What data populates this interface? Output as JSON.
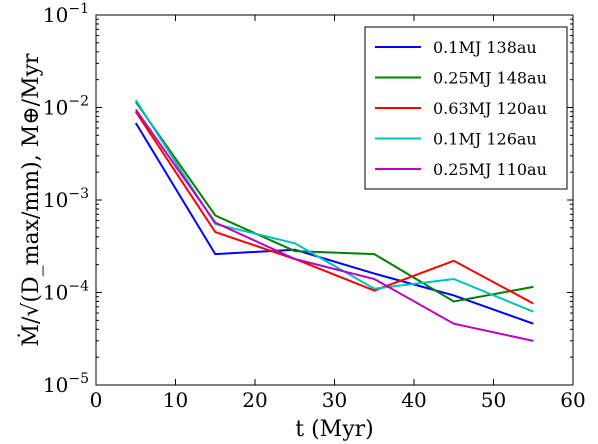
{
  "chart_data": {
    "type": "line",
    "xlabel": "t (Myr)",
    "ylabel": "Ṁ/√(D_max/mm), M⊕/Myr",
    "xlim": [
      0,
      60
    ],
    "ylim": [
      1e-05,
      0.1
    ],
    "yscale": "log",
    "grid": false,
    "legend_position": "top-right",
    "x_ticks": [
      0,
      10,
      20,
      30,
      40,
      50,
      60
    ],
    "x_tick_labels": [
      "0",
      "10",
      "20",
      "30",
      "40",
      "50",
      "60"
    ],
    "y_ticks": [
      1e-05,
      0.0001,
      0.001,
      0.01,
      0.1
    ],
    "y_tick_labels": [
      {
        "base": "10",
        "exp": "−5"
      },
      {
        "base": "10",
        "exp": "−4"
      },
      {
        "base": "10",
        "exp": "−3"
      },
      {
        "base": "10",
        "exp": "−2"
      },
      {
        "base": "10",
        "exp": "−1"
      }
    ],
    "x": [
      5,
      15,
      25,
      35,
      45,
      55
    ],
    "series": [
      {
        "name": "0.1MJ 138au",
        "color": "#0000ff",
        "values": [
          0.0068,
          0.00026,
          0.00029,
          0.00016,
          9.3e-05,
          4.6e-05
        ]
      },
      {
        "name": "0.25MJ 148au",
        "color": "#008000",
        "values": [
          0.0115,
          0.00068,
          0.00028,
          0.00026,
          8e-05,
          0.000115
        ]
      },
      {
        "name": "0.63MJ 120au",
        "color": "#ff0000",
        "values": [
          0.009,
          0.00045,
          0.00023,
          0.000105,
          0.00022,
          7.6e-05
        ]
      },
      {
        "name": "0.1MJ 126au",
        "color": "#00bfbf",
        "values": [
          0.012,
          0.00055,
          0.00034,
          0.00011,
          0.00014,
          6.2e-05
        ]
      },
      {
        "name": "0.25MJ 110au",
        "color": "#bf00bf",
        "values": [
          0.0095,
          0.00057,
          0.00023,
          0.00014,
          4.6e-05,
          3e-05
        ]
      }
    ]
  }
}
